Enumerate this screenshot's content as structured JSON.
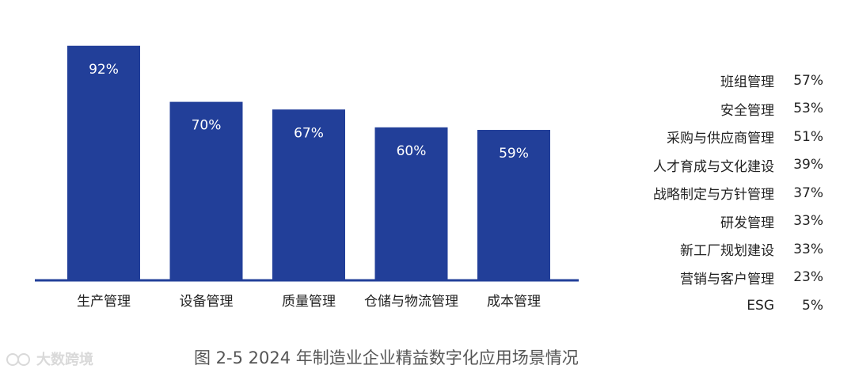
{
  "chart_data": {
    "type": "bar",
    "categories": [
      "生产管理",
      "设备管理",
      "质量管理",
      "仓储与物流管理",
      "成本管理"
    ],
    "values": [
      92,
      70,
      67,
      60,
      59
    ],
    "value_labels": [
      "92%",
      "70%",
      "67%",
      "60%",
      "59%"
    ],
    "ylim": [
      0,
      100
    ],
    "grid": false,
    "colors": {
      "bar": "#223f99"
    }
  },
  "side_list": [
    {
      "name": "班组管理",
      "value": "57%"
    },
    {
      "name": "安全管理",
      "value": "53%"
    },
    {
      "name": "采购与供应商管理",
      "value": "51%"
    },
    {
      "name": "人才育成与文化建设",
      "value": "39%"
    },
    {
      "name": "战略制定与方针管理",
      "value": "37%"
    },
    {
      "name": "研发管理",
      "value": "33%"
    },
    {
      "name": "新工厂规划建设",
      "value": "33%"
    },
    {
      "name": "营销与客户管理",
      "value": "23%"
    },
    {
      "name": "ESG",
      "value": "5%"
    }
  ],
  "caption": "图 2-5 2024 年制造业企业精益数字化应用场景情况",
  "watermark": {
    "text": "大数跨境",
    "icon": "watermark-logo-icon"
  }
}
